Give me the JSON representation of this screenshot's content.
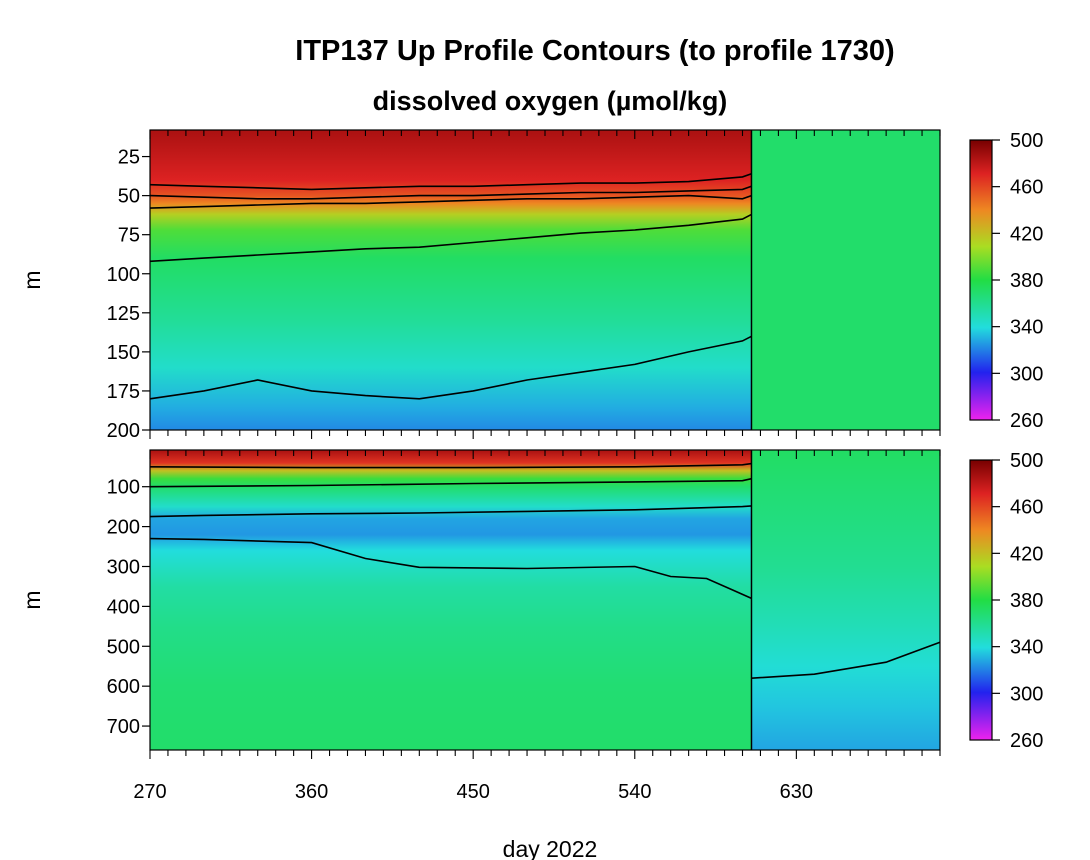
{
  "chart_data": [
    {
      "type": "heatmap",
      "title": "ITP137 Up Profile Contours (to profile 1730)",
      "subtitle": "dissolved oxygen (µmol/kg)",
      "xlabel": "",
      "ylabel": "m",
      "xlim": [
        270,
        710
      ],
      "ylim": [
        200,
        8
      ],
      "y_reversed": true,
      "x_ticks": [
        270,
        360,
        450,
        540,
        630
      ],
      "y_ticks": [
        25,
        50,
        75,
        100,
        125,
        150,
        175,
        200
      ],
      "data_end_day": 605,
      "colorbar": {
        "min": 260,
        "max": 500,
        "ticks": [
          260,
          300,
          340,
          380,
          420,
          460,
          500
        ]
      },
      "depth_profile": [
        [
          8,
          485
        ],
        [
          40,
          470
        ],
        [
          50,
          455
        ],
        [
          55,
          440
        ],
        [
          62,
          415
        ],
        [
          72,
          390
        ],
        [
          90,
          372
        ],
        [
          130,
          358
        ],
        [
          160,
          345
        ],
        [
          185,
          330
        ],
        [
          200,
          322
        ]
      ],
      "fill_value_after_data": 370,
      "contour_levels": [
        {
          "name": "c1",
          "points": [
            [
              270,
              43
            ],
            [
              300,
              44
            ],
            [
              330,
              45
            ],
            [
              360,
              46
            ],
            [
              390,
              45
            ],
            [
              420,
              44
            ],
            [
              450,
              44
            ],
            [
              480,
              43
            ],
            [
              510,
              42
            ],
            [
              540,
              42
            ],
            [
              570,
              41
            ],
            [
              600,
              38
            ],
            [
              605,
              36
            ]
          ]
        },
        {
          "name": "c2",
          "points": [
            [
              270,
              50
            ],
            [
              300,
              51
            ],
            [
              330,
              52
            ],
            [
              360,
              52
            ],
            [
              390,
              51
            ],
            [
              420,
              50
            ],
            [
              450,
              50
            ],
            [
              480,
              49
            ],
            [
              510,
              48
            ],
            [
              540,
              48
            ],
            [
              570,
              47
            ],
            [
              600,
              46
            ],
            [
              605,
              44
            ]
          ]
        },
        {
          "name": "c3",
          "points": [
            [
              270,
              58
            ],
            [
              300,
              57
            ],
            [
              330,
              56
            ],
            [
              360,
              55
            ],
            [
              390,
              55
            ],
            [
              420,
              54
            ],
            [
              450,
              53
            ],
            [
              480,
              52
            ],
            [
              510,
              52
            ],
            [
              540,
              51
            ],
            [
              570,
              50
            ],
            [
              600,
              52
            ],
            [
              605,
              50
            ]
          ]
        },
        {
          "name": "c4",
          "points": [
            [
              270,
              92
            ],
            [
              300,
              90
            ],
            [
              330,
              88
            ],
            [
              360,
              86
            ],
            [
              390,
              84
            ],
            [
              420,
              83
            ],
            [
              450,
              80
            ],
            [
              480,
              77
            ],
            [
              510,
              74
            ],
            [
              540,
              72
            ],
            [
              570,
              69
            ],
            [
              600,
              65
            ],
            [
              605,
              62
            ]
          ]
        },
        {
          "name": "c5",
          "points": [
            [
              270,
              180
            ],
            [
              300,
              175
            ],
            [
              330,
              168
            ],
            [
              360,
              175
            ],
            [
              390,
              178
            ],
            [
              420,
              180
            ],
            [
              450,
              175
            ],
            [
              480,
              168
            ],
            [
              510,
              163
            ],
            [
              540,
              158
            ],
            [
              570,
              150
            ],
            [
              600,
              143
            ],
            [
              605,
              140
            ]
          ]
        }
      ]
    },
    {
      "type": "heatmap",
      "xlabel": "day 2022",
      "ylabel": "m",
      "xlim": [
        270,
        710
      ],
      "ylim": [
        760,
        8
      ],
      "y_reversed": true,
      "x_ticks": [
        270,
        360,
        450,
        540,
        630
      ],
      "y_ticks": [
        100,
        200,
        300,
        400,
        500,
        600,
        700
      ],
      "data_end_day": 605,
      "colorbar": {
        "min": 260,
        "max": 500,
        "ticks": [
          260,
          300,
          340,
          380,
          420,
          460,
          500
        ]
      },
      "depth_profile": [
        [
          8,
          485
        ],
        [
          40,
          465
        ],
        [
          60,
          420
        ],
        [
          80,
          385
        ],
        [
          100,
          370
        ],
        [
          150,
          345
        ],
        [
          180,
          328
        ],
        [
          220,
          325
        ],
        [
          260,
          340
        ],
        [
          350,
          355
        ],
        [
          450,
          362
        ],
        [
          600,
          368
        ],
        [
          760,
          370
        ]
      ],
      "fill_profile_after_data": [
        [
          8,
          372
        ],
        [
          300,
          360
        ],
        [
          450,
          350
        ],
        [
          550,
          342
        ],
        [
          650,
          335
        ],
        [
          760,
          328
        ]
      ],
      "contour_levels": [
        {
          "name": "d1",
          "points": [
            [
              270,
              50
            ],
            [
              360,
              52
            ],
            [
              450,
              52
            ],
            [
              540,
              50
            ],
            [
              600,
              45
            ],
            [
              605,
              42
            ]
          ]
        },
        {
          "name": "d2",
          "points": [
            [
              270,
              100
            ],
            [
              360,
              97
            ],
            [
              450,
              92
            ],
            [
              540,
              88
            ],
            [
              600,
              85
            ],
            [
              605,
              80
            ]
          ]
        },
        {
          "name": "d3",
          "points": [
            [
              270,
              175
            ],
            [
              300,
              172
            ],
            [
              360,
              168
            ],
            [
              420,
              166
            ],
            [
              480,
              162
            ],
            [
              540,
              158
            ],
            [
              600,
              150
            ],
            [
              605,
              148
            ]
          ]
        },
        {
          "name": "d4",
          "points": [
            [
              270,
              230
            ],
            [
              300,
              232
            ],
            [
              360,
              240
            ],
            [
              390,
              280
            ],
            [
              420,
              302
            ],
            [
              480,
              305
            ],
            [
              540,
              300
            ],
            [
              560,
              325
            ],
            [
              580,
              330
            ],
            [
              595,
              360
            ],
            [
              605,
              380
            ]
          ]
        },
        {
          "name": "d5",
          "points": [
            [
              605,
              580
            ],
            [
              640,
              570
            ],
            [
              680,
              540
            ],
            [
              710,
              490
            ]
          ]
        }
      ]
    }
  ]
}
